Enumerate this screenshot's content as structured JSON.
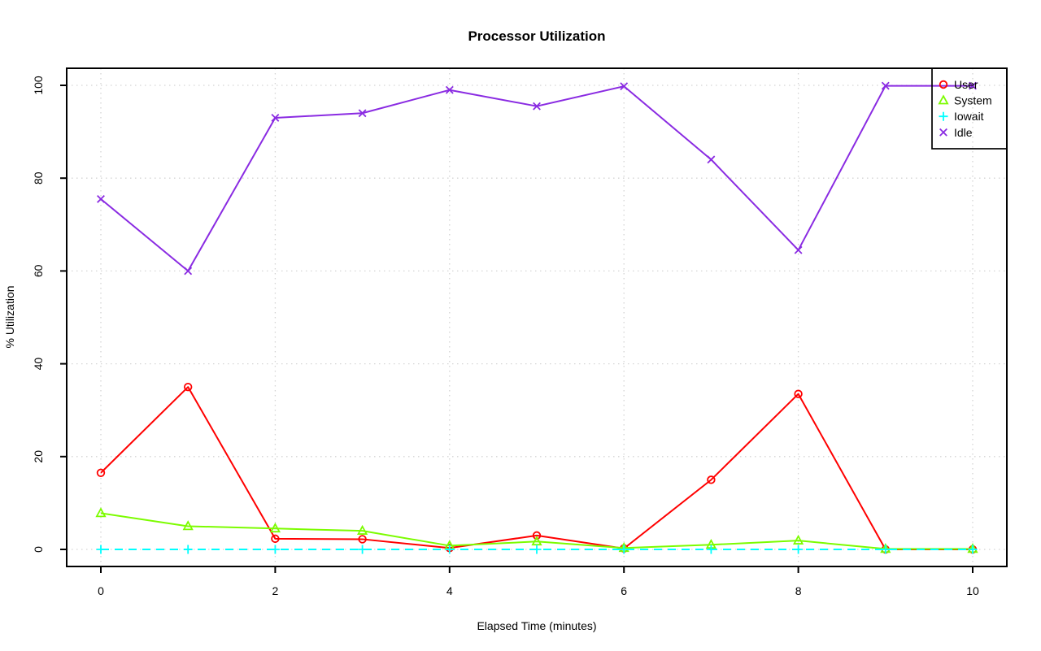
{
  "chart_data": {
    "type": "line",
    "title": "Processor Utilization",
    "xlabel": "Elapsed Time (minutes)",
    "ylabel": "% Utilization",
    "xlim": [
      0,
      10
    ],
    "ylim": [
      0,
      100
    ],
    "xticks": [
      0,
      2,
      4,
      6,
      8,
      10
    ],
    "yticks": [
      0,
      20,
      40,
      60,
      80,
      100
    ],
    "grid": true,
    "grid_color": "#d4d4d4",
    "axis_color": "#000000",
    "legend_position": "top-right",
    "x": [
      0,
      1,
      2,
      3,
      4,
      5,
      6,
      7,
      8,
      9,
      10
    ],
    "series": [
      {
        "name": "User",
        "color": "#ff0000",
        "marker": "circle",
        "line_style": "solid",
        "values": [
          16.5,
          35.0,
          2.3,
          2.2,
          0.3,
          3.0,
          0.2,
          15.0,
          33.5,
          0.0,
          0.0
        ]
      },
      {
        "name": "System",
        "color": "#7cfc00",
        "marker": "triangle",
        "line_style": "solid",
        "values": [
          7.8,
          5.0,
          4.5,
          4.0,
          0.8,
          1.7,
          0.3,
          1.0,
          1.9,
          0.1,
          0.1
        ]
      },
      {
        "name": "Iowait",
        "color": "#00ffff",
        "marker": "plus",
        "line_style": "dashed",
        "values": [
          0,
          0,
          0,
          0,
          0,
          0,
          0,
          0,
          0,
          0,
          0
        ]
      },
      {
        "name": "Idle",
        "color": "#8a2be2",
        "marker": "x",
        "line_style": "solid",
        "values": [
          75.5,
          60.0,
          93.0,
          94.0,
          99.0,
          95.5,
          99.8,
          84.0,
          64.5,
          99.9,
          99.9
        ]
      }
    ]
  }
}
